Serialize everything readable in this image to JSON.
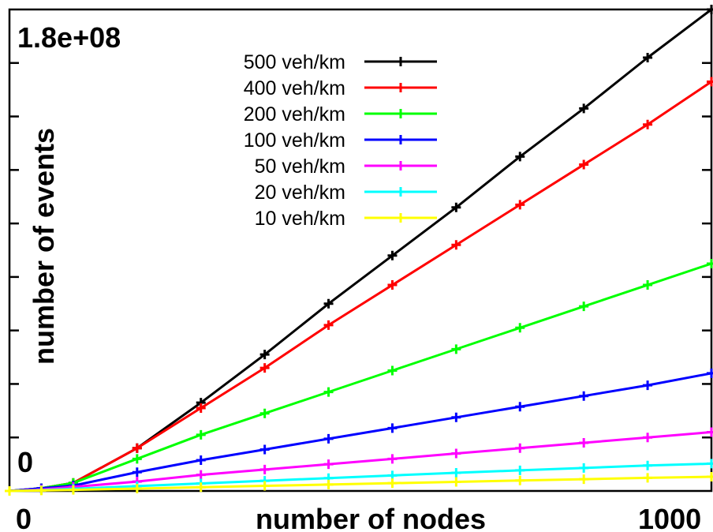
{
  "chart_data": {
    "type": "line",
    "title": "",
    "xlabel": "number of nodes",
    "ylabel": "number of events",
    "xlim": [
      0,
      1100
    ],
    "ylim": [
      0,
      180000000
    ],
    "x_tick_labels": [
      {
        "value": 0,
        "label": "0"
      },
      {
        "value": 1000,
        "label": "1000"
      }
    ],
    "y_tick_labels": [
      {
        "value": 0,
        "label": "0"
      },
      {
        "value": 180000000,
        "label": "1.8e+08"
      }
    ],
    "y_minor_ticks": [
      20000000,
      40000000,
      60000000,
      80000000,
      100000000,
      120000000,
      140000000,
      160000000
    ],
    "grid": false,
    "legend_position": "top-center",
    "x": [
      0,
      50,
      100,
      200,
      300,
      400,
      500,
      600,
      700,
      800,
      900,
      1000,
      1100
    ],
    "series": [
      {
        "name": "500 veh/km",
        "color": "#000000",
        "values": [
          0,
          1000000,
          3000000,
          16000000,
          33000000,
          51000000,
          70000000,
          88000000,
          106000000,
          125000000,
          143000000,
          162000000,
          180000000
        ]
      },
      {
        "name": "400 veh/km",
        "color": "#ff0000",
        "values": [
          0,
          1000000,
          3000000,
          16000000,
          31000000,
          46000000,
          62000000,
          77000000,
          92000000,
          107000000,
          122000000,
          137000000,
          153000000
        ]
      },
      {
        "name": "200 veh/km",
        "color": "#00ff00",
        "values": [
          0,
          1000000,
          3000000,
          12000000,
          21000000,
          29000000,
          37000000,
          45000000,
          53000000,
          61000000,
          69000000,
          77000000,
          85000000
        ]
      },
      {
        "name": "100 veh/km",
        "color": "#0000ff",
        "values": [
          0,
          1000000,
          2000000,
          7000000,
          11500000,
          15500000,
          19500000,
          23500000,
          27500000,
          31500000,
          35500000,
          39500000,
          44000000
        ]
      },
      {
        "name": "50 veh/km",
        "color": "#ff00ff",
        "values": [
          0,
          500000,
          1500000,
          3500000,
          6000000,
          8000000,
          10000000,
          12000000,
          14000000,
          16000000,
          18000000,
          20000000,
          22000000
        ]
      },
      {
        "name": "20 veh/km",
        "color": "#00ffff",
        "values": [
          0,
          300000,
          800000,
          1800000,
          2800000,
          3800000,
          4800000,
          5800000,
          6800000,
          7700000,
          8600000,
          9500000,
          10200000
        ]
      },
      {
        "name": "10 veh/km",
        "color": "#ffff00",
        "values": [
          0,
          200000,
          400000,
          900000,
          1400000,
          1900000,
          2400000,
          2900000,
          3400000,
          3900000,
          4400000,
          4900000,
          5300000
        ]
      }
    ]
  }
}
